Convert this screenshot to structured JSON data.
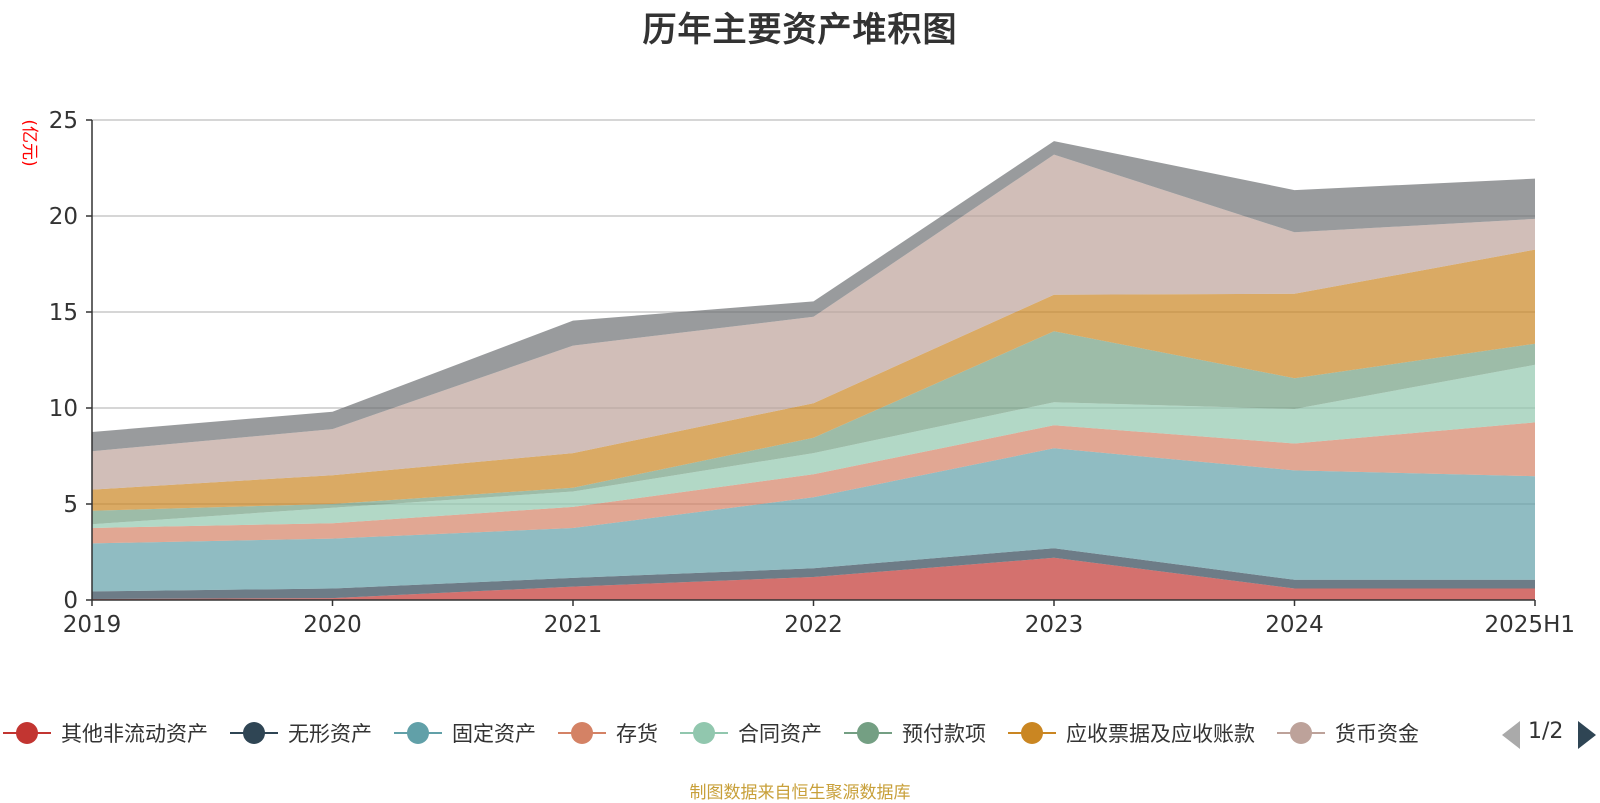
{
  "chart_data": {
    "type": "area",
    "stacked": true,
    "title": "历年主要资产堆积图",
    "ylabel": "(亿元)",
    "xlabel": "",
    "categories": [
      "2019",
      "2020",
      "2021",
      "2022",
      "2023",
      "2024",
      "2025H1"
    ],
    "ylim": [
      0,
      25
    ],
    "yticks": [
      0,
      5,
      10,
      15,
      20,
      25
    ],
    "grid": true,
    "legend_position": "bottom",
    "legend_page": "1/2",
    "source": "制图数据来自恒生聚源数据库",
    "series": [
      {
        "name": "其他非流动资产",
        "color": "#c23531",
        "values": [
          0.05,
          0.1,
          0.7,
          1.2,
          2.2,
          0.6,
          0.6
        ]
      },
      {
        "name": "无形资产",
        "color": "#2f4554",
        "values": [
          0.4,
          0.5,
          0.45,
          0.45,
          0.5,
          0.45,
          0.45
        ]
      },
      {
        "name": "固定资产",
        "color": "#61a0a8",
        "values": [
          2.5,
          2.6,
          2.6,
          3.7,
          5.2,
          5.7,
          5.4
        ]
      },
      {
        "name": "存货",
        "color": "#d48265",
        "values": [
          0.8,
          0.8,
          1.1,
          1.2,
          1.2,
          1.4,
          2.8
        ]
      },
      {
        "name": "合同资产",
        "color": "#91c7ae",
        "values": [
          0.2,
          0.8,
          0.8,
          1.1,
          1.2,
          1.8,
          3.0
        ]
      },
      {
        "name": "预付款项",
        "color": "#749f83",
        "values": [
          0.7,
          0.2,
          0.2,
          0.8,
          3.7,
          1.6,
          1.1
        ]
      },
      {
        "name": "应收票据及应收账款",
        "color": "#ca8622",
        "values": [
          1.1,
          1.5,
          1.8,
          1.8,
          1.9,
          4.4,
          4.9
        ]
      },
      {
        "name": "货币资金",
        "color": "#bda29a",
        "values": [
          2.0,
          2.4,
          5.6,
          4.5,
          7.3,
          3.2,
          1.6
        ]
      },
      {
        "name": "",
        "color": "#6e7074",
        "values": [
          1.0,
          0.9,
          1.3,
          0.8,
          0.7,
          2.2,
          2.1
        ]
      }
    ]
  }
}
